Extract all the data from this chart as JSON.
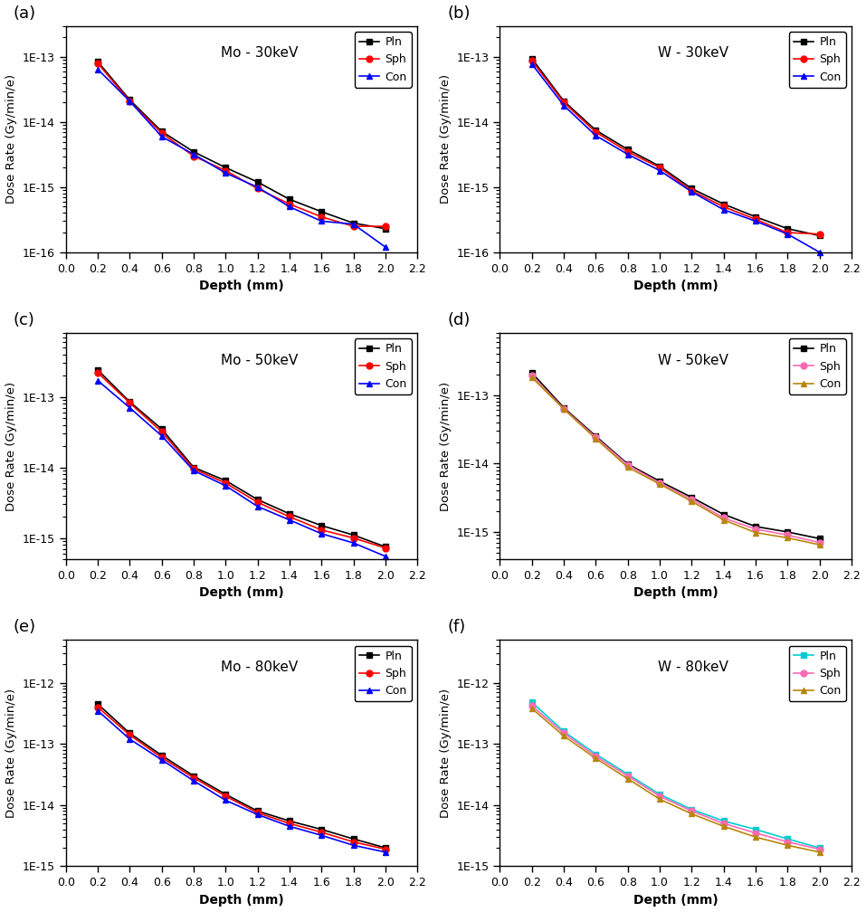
{
  "panels": [
    {
      "label": "(a)",
      "title": "Mo - 30keV",
      "ylim": [
        1e-16,
        3e-13
      ],
      "series": [
        {
          "name": "Pln",
          "color": "black",
          "marker": "s",
          "x": [
            0.2,
            0.4,
            0.6,
            0.8,
            1.0,
            1.2,
            1.4,
            1.6,
            1.8,
            2.0
          ],
          "y": [
            8.5e-14,
            2.2e-14,
            7.2e-15,
            3.5e-15,
            2e-15,
            1.2e-15,
            6.5e-16,
            4.2e-16,
            2.8e-16,
            2.3e-16
          ]
        },
        {
          "name": "Sph",
          "color": "red",
          "marker": "o",
          "x": [
            0.2,
            0.4,
            0.6,
            0.8,
            1.0,
            1.2,
            1.4,
            1.6,
            1.8,
            2.0
          ],
          "y": [
            8e-14,
            2.1e-14,
            6.8e-15,
            3e-15,
            1.8e-15,
            9.5e-16,
            5.5e-16,
            3.5e-16,
            2.5e-16,
            2.5e-16
          ]
        },
        {
          "name": "Con",
          "color": "blue",
          "marker": "^",
          "x": [
            0.2,
            0.4,
            0.6,
            0.8,
            1.0,
            1.2,
            1.4,
            1.6,
            1.8,
            2.0
          ],
          "y": [
            6.5e-14,
            2.1e-14,
            6e-15,
            3.2e-15,
            1.65e-15,
            1e-15,
            5e-16,
            3e-16,
            2.7e-16,
            1.2e-16
          ]
        }
      ]
    },
    {
      "label": "(b)",
      "title": "W - 30keV",
      "ylim": [
        1e-16,
        3e-13
      ],
      "series": [
        {
          "name": "Pln",
          "color": "black",
          "marker": "s",
          "x": [
            0.2,
            0.4,
            0.6,
            0.8,
            1.0,
            1.2,
            1.4,
            1.6,
            1.8,
            2.0
          ],
          "y": [
            9.5e-14,
            2.1e-14,
            7.5e-15,
            3.8e-15,
            2.1e-15,
            9.5e-16,
            5.5e-16,
            3.5e-16,
            2.3e-16,
            1.8e-16
          ]
        },
        {
          "name": "Sph",
          "color": "red",
          "marker": "o",
          "x": [
            0.2,
            0.4,
            0.6,
            0.8,
            1.0,
            1.2,
            1.4,
            1.6,
            1.8,
            2.0
          ],
          "y": [
            8.8e-14,
            2e-14,
            7e-15,
            3.5e-15,
            2e-15,
            8.8e-16,
            5e-16,
            3.2e-16,
            2e-16,
            1.9e-16
          ]
        },
        {
          "name": "Con",
          "color": "blue",
          "marker": "^",
          "x": [
            0.2,
            0.4,
            0.6,
            0.8,
            1.0,
            1.2,
            1.4,
            1.6,
            1.8,
            2.0
          ],
          "y": [
            7.8e-14,
            1.8e-14,
            6.2e-15,
            3.2e-15,
            1.8e-15,
            8.5e-16,
            4.5e-16,
            3e-16,
            1.9e-16,
            1e-16
          ]
        }
      ]
    },
    {
      "label": "(c)",
      "title": "Mo - 50keV",
      "ylim": [
        5e-16,
        8e-13
      ],
      "series": [
        {
          "name": "Pln",
          "color": "black",
          "marker": "s",
          "x": [
            0.2,
            0.4,
            0.6,
            0.8,
            1.0,
            1.2,
            1.4,
            1.6,
            1.8,
            2.0
          ],
          "y": [
            2.4e-13,
            8.5e-14,
            3.5e-14,
            1e-14,
            6.5e-15,
            3.5e-15,
            2.2e-15,
            1.5e-15,
            1.1e-15,
            7.5e-16
          ]
        },
        {
          "name": "Sph",
          "color": "red",
          "marker": "o",
          "x": [
            0.2,
            0.4,
            0.6,
            0.8,
            1.0,
            1.2,
            1.4,
            1.6,
            1.8,
            2.0
          ],
          "y": [
            2.2e-13,
            8.2e-14,
            3.2e-14,
            9.5e-15,
            6e-15,
            3.2e-15,
            2e-15,
            1.3e-15,
            1e-15,
            7.2e-16
          ]
        },
        {
          "name": "Con",
          "color": "blue",
          "marker": "^",
          "x": [
            0.2,
            0.4,
            0.6,
            0.8,
            1.0,
            1.2,
            1.4,
            1.6,
            1.8,
            2.0
          ],
          "y": [
            1.7e-13,
            7e-14,
            2.8e-14,
            9e-15,
            5.5e-15,
            2.8e-15,
            1.8e-15,
            1.15e-15,
            8.5e-16,
            5.5e-16
          ]
        }
      ]
    },
    {
      "label": "(d)",
      "title": "W - 50keV",
      "ylim": [
        4e-16,
        8e-13
      ],
      "series": [
        {
          "name": "Pln",
          "color": "black",
          "marker": "s",
          "x": [
            0.2,
            0.4,
            0.6,
            0.8,
            1.0,
            1.2,
            1.4,
            1.6,
            1.8,
            2.0
          ],
          "y": [
            2.1e-13,
            6.5e-14,
            2.5e-14,
            9.8e-15,
            5.5e-15,
            3.2e-15,
            1.8e-15,
            1.2e-15,
            1e-15,
            8e-16
          ]
        },
        {
          "name": "Sph",
          "color": "#FF69B4",
          "marker": "o",
          "x": [
            0.2,
            0.4,
            0.6,
            0.8,
            1.0,
            1.2,
            1.4,
            1.6,
            1.8,
            2.0
          ],
          "y": [
            1.9e-13,
            6.3e-14,
            2.4e-14,
            9.5e-15,
            5.2e-15,
            3e-15,
            1.6e-15,
            1.1e-15,
            9e-16,
            7e-16
          ]
        },
        {
          "name": "Con",
          "color": "#B8860B",
          "marker": "^",
          "x": [
            0.2,
            0.4,
            0.6,
            0.8,
            1.0,
            1.2,
            1.4,
            1.6,
            1.8,
            2.0
          ],
          "y": [
            1.8e-13,
            6.2e-14,
            2.3e-14,
            8.8e-15,
            5e-15,
            2.8e-15,
            1.5e-15,
            9.8e-16,
            8.2e-16,
            6.5e-16
          ]
        }
      ]
    },
    {
      "label": "(e)",
      "title": "Mo - 80keV",
      "ylim": [
        1e-15,
        5e-12
      ],
      "series": [
        {
          "name": "Pln",
          "color": "black",
          "marker": "s",
          "x": [
            0.2,
            0.4,
            0.6,
            0.8,
            1.0,
            1.2,
            1.4,
            1.6,
            1.8,
            2.0
          ],
          "y": [
            4.5e-13,
            1.5e-13,
            6.5e-14,
            3e-14,
            1.5e-14,
            8e-15,
            5.5e-15,
            4e-15,
            2.8e-15,
            2e-15
          ]
        },
        {
          "name": "Sph",
          "color": "red",
          "marker": "o",
          "x": [
            0.2,
            0.4,
            0.6,
            0.8,
            1.0,
            1.2,
            1.4,
            1.6,
            1.8,
            2.0
          ],
          "y": [
            4e-13,
            1.4e-13,
            6e-14,
            2.8e-14,
            1.4e-14,
            7.5e-15,
            5e-15,
            3.6e-15,
            2.5e-15,
            1.9e-15
          ]
        },
        {
          "name": "Con",
          "color": "blue",
          "marker": "^",
          "x": [
            0.2,
            0.4,
            0.6,
            0.8,
            1.0,
            1.2,
            1.4,
            1.6,
            1.8,
            2.0
          ],
          "y": [
            3.5e-13,
            1.2e-13,
            5.5e-14,
            2.5e-14,
            1.2e-14,
            7e-15,
            4.5e-15,
            3.2e-15,
            2.2e-15,
            1.7e-15
          ]
        }
      ]
    },
    {
      "label": "(f)",
      "title": "W - 80keV",
      "ylim": [
        1e-15,
        5e-12
      ],
      "series": [
        {
          "name": "Pln",
          "color": "#00CED1",
          "marker": "s",
          "x": [
            0.2,
            0.4,
            0.6,
            0.8,
            1.0,
            1.2,
            1.4,
            1.6,
            1.8,
            2.0
          ],
          "y": [
            4.8e-13,
            1.6e-13,
            6.8e-14,
            3.2e-14,
            1.5e-14,
            8.5e-15,
            5.5e-15,
            4e-15,
            2.8e-15,
            2e-15
          ]
        },
        {
          "name": "Sph",
          "color": "#FF69B4",
          "marker": "o",
          "x": [
            0.2,
            0.4,
            0.6,
            0.8,
            1.0,
            1.2,
            1.4,
            1.6,
            1.8,
            2.0
          ],
          "y": [
            4.2e-13,
            1.5e-13,
            6.3e-14,
            3e-14,
            1.4e-14,
            8e-15,
            5e-15,
            3.5e-15,
            2.5e-15,
            1.9e-15
          ]
        },
        {
          "name": "Con",
          "color": "#B8860B",
          "marker": "^",
          "x": [
            0.2,
            0.4,
            0.6,
            0.8,
            1.0,
            1.2,
            1.4,
            1.6,
            1.8,
            2.0
          ],
          "y": [
            3.8e-13,
            1.35e-13,
            5.8e-14,
            2.7e-14,
            1.25e-14,
            7.2e-15,
            4.5e-15,
            3e-15,
            2.2e-15,
            1.7e-15
          ]
        }
      ]
    }
  ],
  "xlabel": "Depth (mm)",
  "ylabel": "Dose Rate (Gy/min/e)",
  "xlim": [
    0.0,
    2.2
  ],
  "xticks": [
    0.0,
    0.2,
    0.4,
    0.6,
    0.8,
    1.0,
    1.2,
    1.4,
    1.6,
    1.8,
    2.0,
    2.2
  ],
  "background_color": "white"
}
